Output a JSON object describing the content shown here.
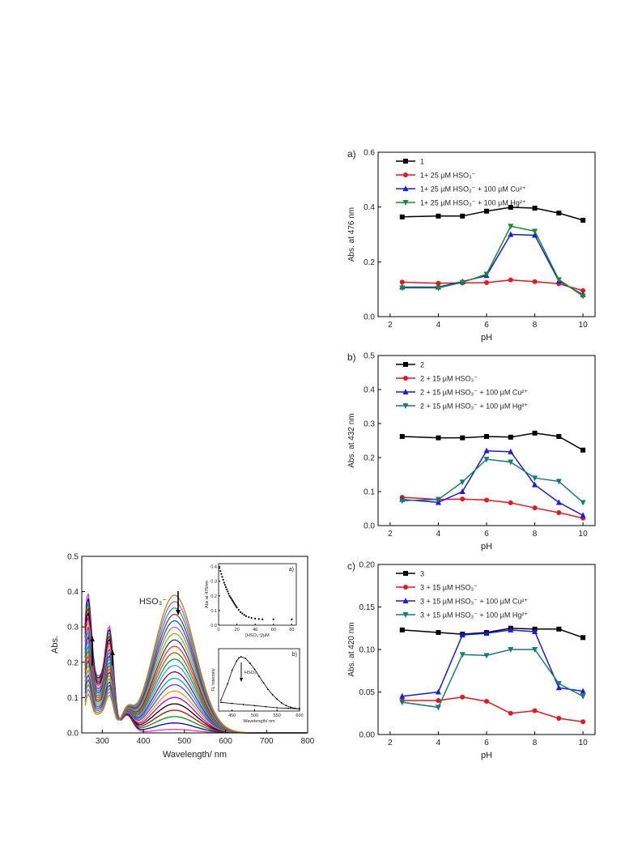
{
  "chart_data": [
    {
      "id": "panel-a",
      "type": "line",
      "panel_label": "a)",
      "xlabel": "pH",
      "ylabel": "Abs. at 476 nm",
      "xlim": [
        1.5,
        10.5
      ],
      "ylim": [
        0.0,
        0.6
      ],
      "xticks": [
        2,
        4,
        6,
        8,
        10
      ],
      "yticks": [
        0.0,
        0.2,
        0.4,
        0.6
      ],
      "ytick_labels": [
        "0.0",
        "0.2",
        "0.4",
        "0.6"
      ],
      "legend_position": "top-left",
      "x": [
        2.5,
        4,
        5,
        6,
        7,
        8,
        9,
        10
      ],
      "series": [
        {
          "name": "1",
          "marker": "square",
          "color": "#000000",
          "values": [
            0.364,
            0.367,
            0.367,
            0.385,
            0.399,
            0.396,
            0.378,
            0.352
          ]
        },
        {
          "name": "1+ 25 µM HSO₃⁻",
          "marker": "circle",
          "color": "#e8161d",
          "values": [
            0.126,
            0.122,
            0.123,
            0.124,
            0.134,
            0.128,
            0.12,
            0.095
          ]
        },
        {
          "name": "1+ 25 µM HSO₃⁻ + 100 µM Cu²⁺",
          "marker": "triangle-up",
          "color": "#1a1ae6",
          "values": [
            0.108,
            0.108,
            0.128,
            0.15,
            0.3,
            0.297,
            0.13,
            0.08
          ]
        },
        {
          "name": "1+ 25 µM HSO₃⁻ + 100 µM Hg²⁺",
          "marker": "triangle-down",
          "color": "#1a8a2a",
          "values": [
            0.105,
            0.105,
            0.125,
            0.155,
            0.33,
            0.312,
            0.135,
            0.075
          ]
        }
      ]
    },
    {
      "id": "panel-b",
      "type": "line",
      "panel_label": "b)",
      "xlabel": "pH",
      "ylabel": "Abs. at 432 nm",
      "xlim": [
        1.5,
        10.5
      ],
      "ylim": [
        0.0,
        0.5
      ],
      "xticks": [
        2,
        4,
        6,
        8,
        10
      ],
      "yticks": [
        0.0,
        0.1,
        0.2,
        0.3,
        0.4,
        0.5
      ],
      "ytick_labels": [
        "0.0",
        "0.1",
        "0.2",
        "0.3",
        "0.4",
        "0.5"
      ],
      "legend_position": "top-left",
      "x": [
        2.5,
        4,
        5,
        6,
        7,
        8,
        9,
        10
      ],
      "series": [
        {
          "name": "2",
          "marker": "square",
          "color": "#000000",
          "values": [
            0.262,
            0.258,
            0.258,
            0.262,
            0.26,
            0.272,
            0.262,
            0.222
          ]
        },
        {
          "name": "2 + 15 µM HSO₃⁻",
          "marker": "circle",
          "color": "#e8161d",
          "values": [
            0.083,
            0.077,
            0.078,
            0.075,
            0.067,
            0.052,
            0.038,
            0.022
          ]
        },
        {
          "name": "2 + 15 µM HSO₃⁻ + 100 µM Cu²⁺",
          "marker": "triangle-up",
          "color": "#1a1ae6",
          "values": [
            0.077,
            0.068,
            0.1,
            0.22,
            0.217,
            0.12,
            0.068,
            0.03
          ]
        },
        {
          "name": "2 + 15 µM HSO₃⁻ + 100 µM Hg²⁺",
          "marker": "triangle-down",
          "color": "#1a7a7a",
          "values": [
            0.073,
            0.077,
            0.128,
            0.195,
            0.187,
            0.14,
            0.13,
            0.068
          ]
        }
      ]
    },
    {
      "id": "panel-c",
      "type": "line",
      "panel_label": "c)",
      "xlabel": "pH",
      "ylabel": "Abs. at 420 nm",
      "xlim": [
        1.5,
        10.5
      ],
      "ylim": [
        0.0,
        0.2
      ],
      "xticks": [
        2,
        4,
        6,
        8,
        10
      ],
      "yticks": [
        0.0,
        0.05,
        0.1,
        0.15,
        0.2
      ],
      "ytick_labels": [
        "0.00",
        "0.05",
        "0.10",
        "0.15",
        "0.20"
      ],
      "legend_position": "top-left",
      "x": [
        2.5,
        4,
        5,
        6,
        7,
        8,
        9,
        10
      ],
      "series": [
        {
          "name": "3",
          "marker": "square",
          "color": "#000000",
          "values": [
            0.123,
            0.12,
            0.118,
            0.12,
            0.125,
            0.124,
            0.124,
            0.114
          ]
        },
        {
          "name": "3 + 15 µM HSO₃⁻",
          "marker": "circle",
          "color": "#e8161d",
          "values": [
            0.04,
            0.04,
            0.044,
            0.039,
            0.025,
            0.028,
            0.019,
            0.015
          ]
        },
        {
          "name": "3 + 15 µM HSO₃⁻ + 100 µM Cu²⁺",
          "marker": "triangle-up",
          "color": "#1a1ae6",
          "values": [
            0.045,
            0.05,
            0.117,
            0.119,
            0.123,
            0.121,
            0.055,
            0.051
          ]
        },
        {
          "name": "3 + 15 µM HSO₃⁻ + 100 µM Hg²⁺",
          "marker": "triangle-down",
          "color": "#1a7a7a",
          "values": [
            0.038,
            0.032,
            0.094,
            0.093,
            0.1,
            0.1,
            0.06,
            0.045
          ]
        }
      ]
    },
    {
      "id": "panel-spectra",
      "type": "line",
      "xlabel": "Wavelength/ nm",
      "ylabel": "Abs.",
      "xlim": [
        250,
        800
      ],
      "ylim": [
        0.0,
        0.5
      ],
      "xticks": [
        300,
        400,
        500,
        600,
        700,
        800
      ],
      "yticks": [
        0.0,
        0.1,
        0.2,
        0.3,
        0.4,
        0.5
      ],
      "ytick_labels": [
        "0.0",
        "0.1",
        "0.2",
        "0.3",
        "0.4",
        "0.5"
      ],
      "annotation": "HSO₃⁻",
      "peak_wavelength": 476,
      "peak_absorbance_range": [
        0.01,
        0.39
      ],
      "uv_bands_nm": [
        265,
        318
      ],
      "uv_band_absorbance_range": [
        0.11,
        0.32
      ],
      "isosbestic_point_nm": 360,
      "curve_count": 22,
      "colors": [
        "#ff33aa",
        "#0000cc",
        "#009900",
        "#cc0000",
        "#000000",
        "#cc00cc",
        "#ff9900",
        "#6633ff",
        "#00aaaa",
        "#990066",
        "#3399ff",
        "#009966",
        "#996600",
        "#ff3333",
        "#333399",
        "#66cc00",
        "#cc6699",
        "#0066cc",
        "#993333",
        "#339999",
        "#9966cc",
        "#b8860b"
      ],
      "insets": [
        {
          "id": "inset-a",
          "label": "a)",
          "xlabel": "[HSO₃⁻]/µM",
          "ylabel": "Abs at 476nm",
          "xlim": [
            0,
            85
          ],
          "ylim": [
            0.0,
            0.42
          ],
          "xticks": [
            0,
            20,
            40,
            60,
            80
          ],
          "yticks": [
            0.0,
            0.1,
            0.2,
            0.3,
            0.4
          ],
          "ytick_labels": [
            "0.0",
            "0.1",
            "0.2",
            "0.3",
            "0.4"
          ],
          "x": [
            1,
            2,
            3,
            4,
            5,
            6,
            7,
            8,
            9,
            10,
            11,
            12,
            13,
            14,
            15,
            16,
            17,
            18,
            19,
            20,
            22,
            24,
            26,
            28,
            30,
            33,
            36,
            40,
            44,
            48,
            60,
            80
          ],
          "y": [
            0.39,
            0.37,
            0.35,
            0.33,
            0.31,
            0.29,
            0.275,
            0.26,
            0.245,
            0.23,
            0.215,
            0.2,
            0.19,
            0.18,
            0.17,
            0.16,
            0.15,
            0.14,
            0.13,
            0.12,
            0.105,
            0.09,
            0.08,
            0.07,
            0.062,
            0.055,
            0.05,
            0.045,
            0.042,
            0.04,
            0.04,
            0.04
          ]
        },
        {
          "id": "inset-b",
          "label": "b)",
          "xlabel": "Wavelength/ nm",
          "ylabel": "FL Intensity",
          "annotation": "HSO₃⁻",
          "xlim": [
            420,
            600
          ],
          "xticks": [
            450,
            500,
            550,
            600
          ],
          "upper_curve": {
            "x": [
              425,
              440,
              450,
              460,
              465,
              470,
              480,
              490,
              500,
              510,
              520,
              530,
              540,
              550,
              560,
              570,
              580,
              590,
              600
            ],
            "y": [
              0.2,
              0.5,
              0.75,
              0.92,
              0.98,
              1.0,
              0.97,
              0.88,
              0.77,
              0.64,
              0.52,
              0.4,
              0.3,
              0.22,
              0.15,
              0.1,
              0.07,
              0.05,
              0.04
            ]
          },
          "lower_curve": {
            "x": [
              425,
              450,
              475,
              500,
              525,
              550,
              575,
              600
            ],
            "y": [
              0.16,
              0.14,
              0.12,
              0.1,
              0.08,
              0.06,
              0.05,
              0.04
            ]
          }
        }
      ]
    }
  ]
}
